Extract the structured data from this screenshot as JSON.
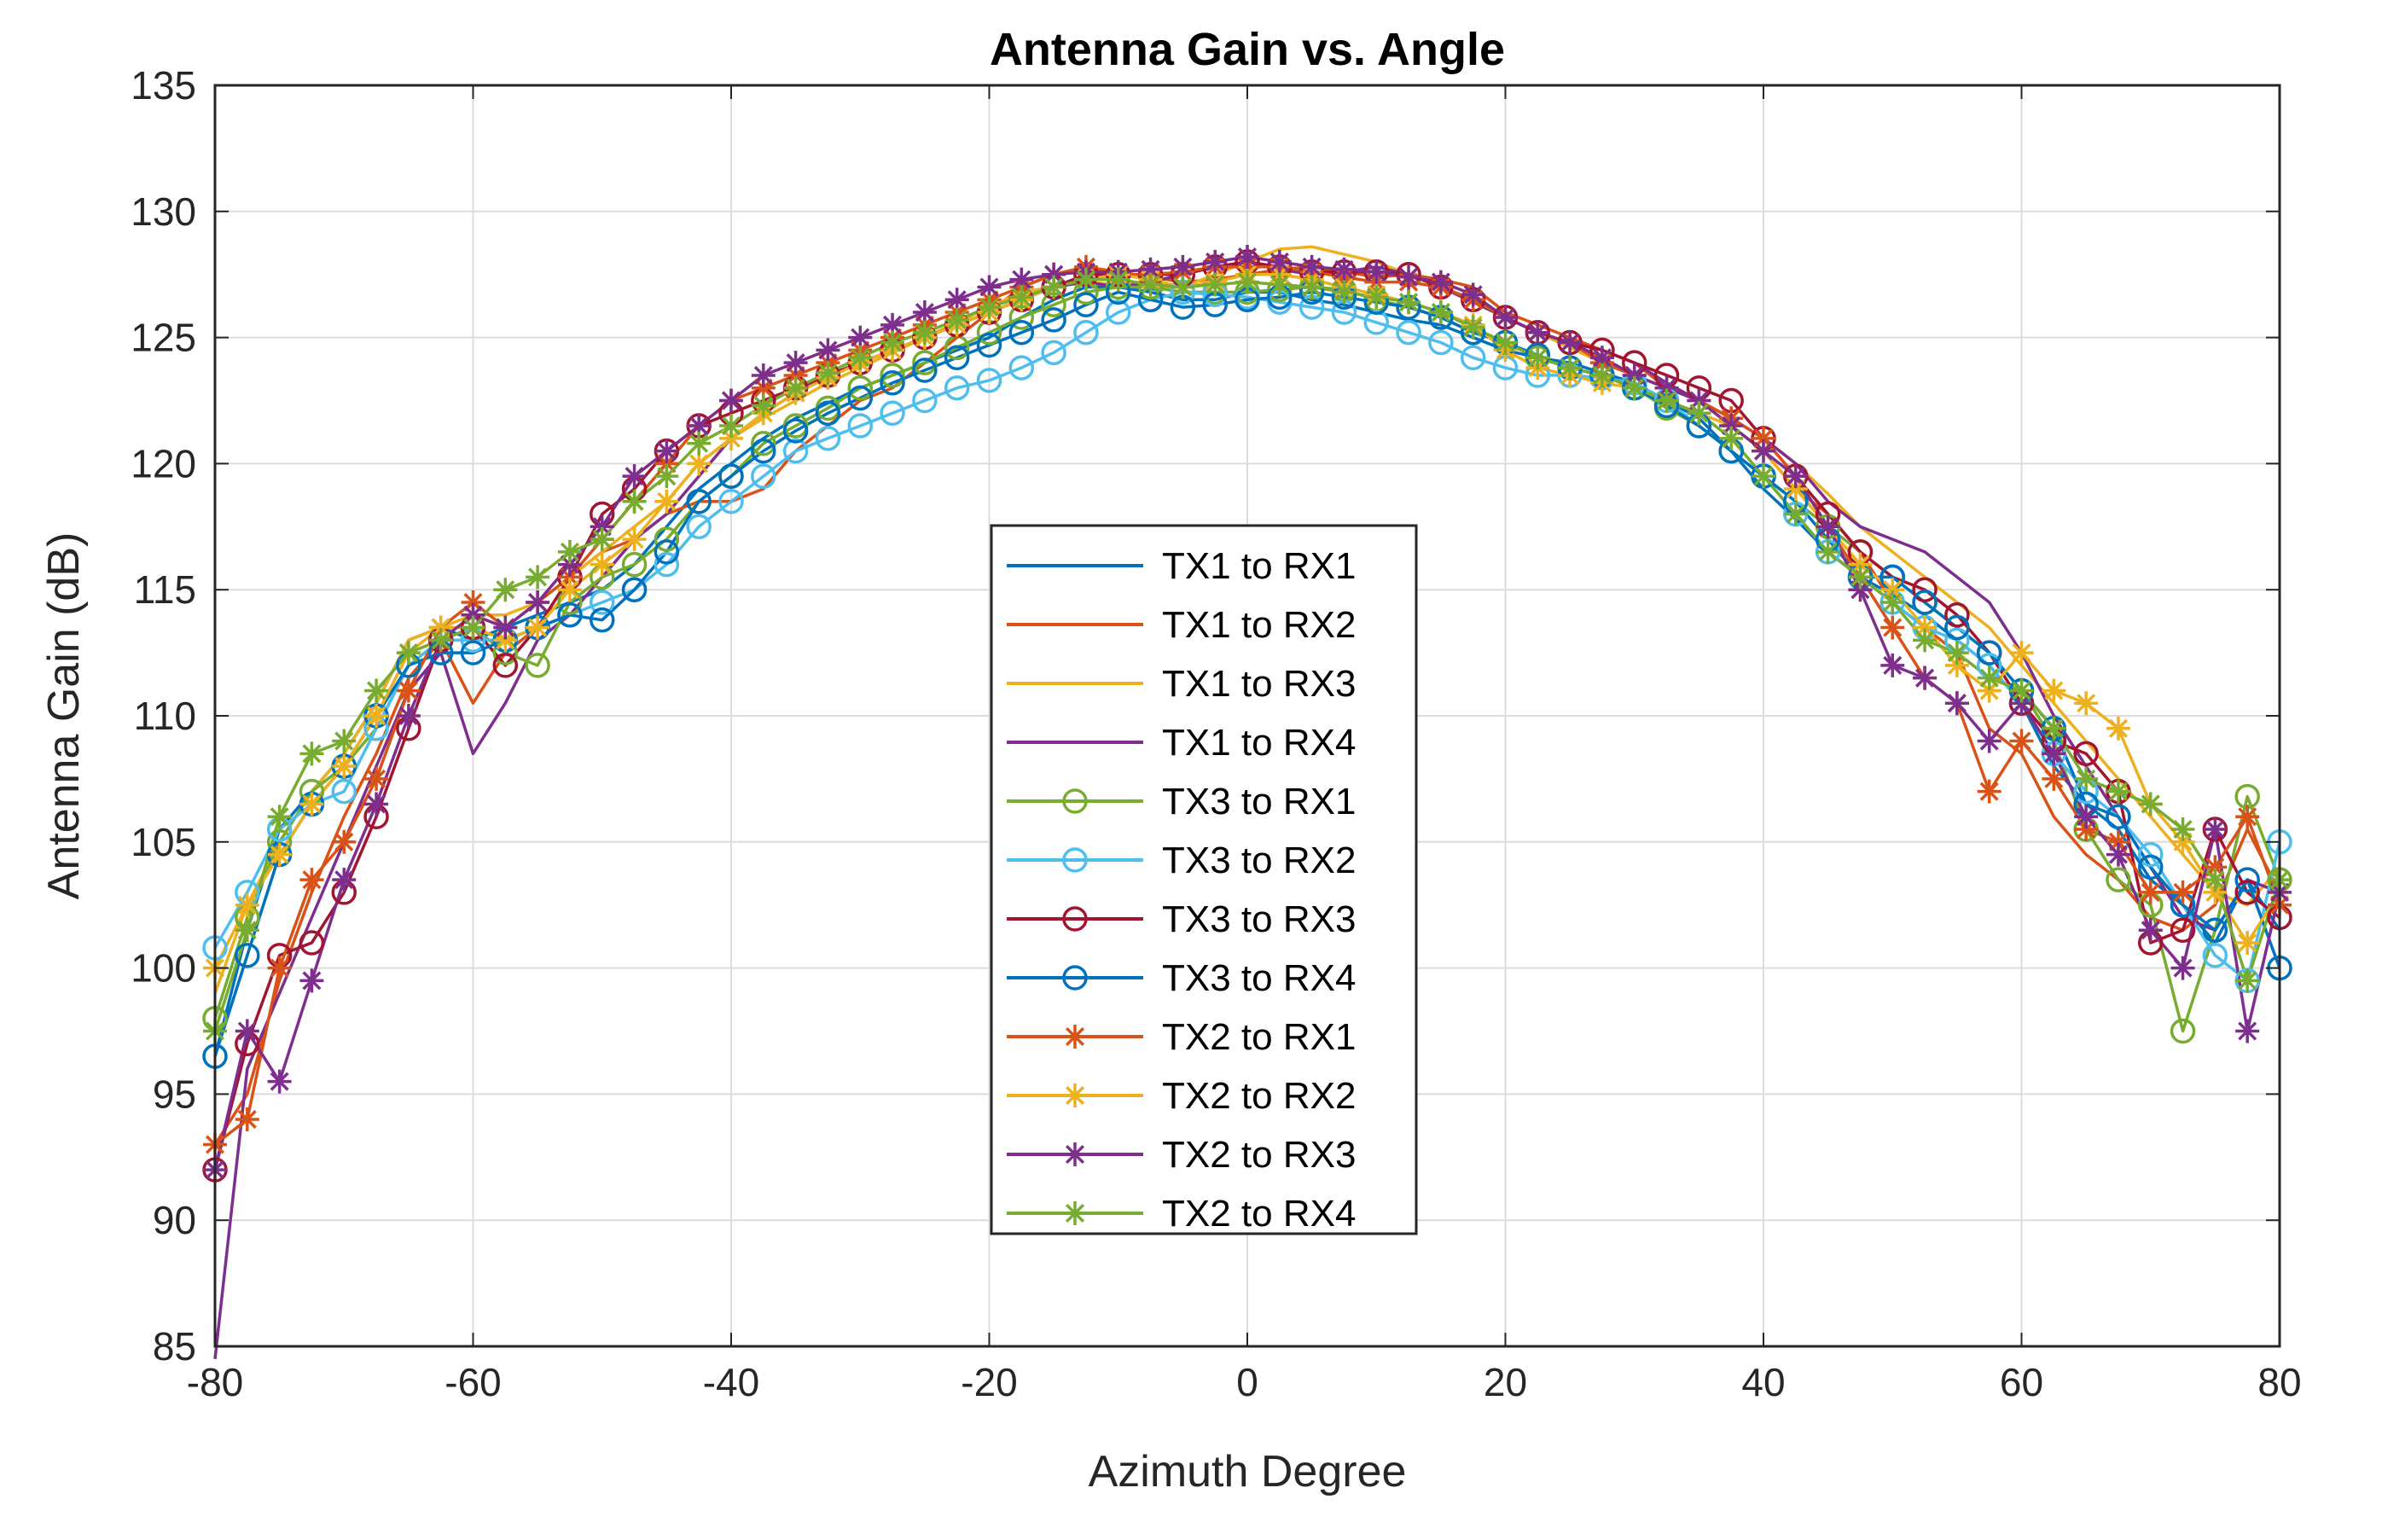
{
  "chart_data": {
    "type": "line",
    "title": "Antenna Gain vs. Angle",
    "xlabel": "Azimuth Degree",
    "ylabel": "Antenna Gain (dB)",
    "xlim": [
      -80,
      80
    ],
    "ylim": [
      85,
      135
    ],
    "xticks": [
      -80,
      -60,
      -40,
      -20,
      0,
      20,
      40,
      60,
      80
    ],
    "yticks": [
      85,
      90,
      95,
      100,
      105,
      110,
      115,
      120,
      125,
      130,
      135
    ],
    "grid": true,
    "legend_position": "center",
    "x": [
      -80,
      -77.5,
      -75,
      -72.5,
      -70,
      -67.5,
      -65,
      -62.5,
      -60,
      -57.5,
      -55,
      -52.5,
      -50,
      -47.5,
      -45,
      -42.5,
      -40,
      -37.5,
      -35,
      -32.5,
      -30,
      -27.5,
      -25,
      -22.5,
      -20,
      -17.5,
      -15,
      -12.5,
      -10,
      -7.5,
      -5,
      -2.5,
      0,
      2.5,
      5,
      7.5,
      10,
      12.5,
      15,
      17.5,
      20,
      22.5,
      25,
      27.5,
      30,
      32.5,
      35,
      37.5,
      40,
      42.5,
      45,
      47.5,
      50,
      52.5,
      55,
      57.5,
      60,
      62.5,
      65,
      67.5,
      70,
      72.5,
      75,
      77.5,
      80
    ],
    "series": [
      {
        "name": "TX1 to RX1",
        "color": "#0072BD",
        "marker": "none",
        "values": [
          96.5,
          101.5,
          105.5,
          107.0,
          108.5,
          110.5,
          113.0,
          113.5,
          113.0,
          113.5,
          114.0,
          114.5,
          115.0,
          116.0,
          117.5,
          119.0,
          120.0,
          121.0,
          121.8,
          122.4,
          123.0,
          123.5,
          124.0,
          124.5,
          125.0,
          125.8,
          126.5,
          127.0,
          127.0,
          126.8,
          126.5,
          126.5,
          126.8,
          126.8,
          126.5,
          126.3,
          126.0,
          125.7,
          125.5,
          125.0,
          124.5,
          124.2,
          124.0,
          123.6,
          123.2,
          122.5,
          121.8,
          120.5,
          119.0,
          117.8,
          116.5,
          115.5,
          114.8,
          114.0,
          113.0,
          112.0,
          110.5,
          108.0,
          106.5,
          105.5,
          103.5,
          102.5,
          101.0,
          103.5,
          101.5
        ]
      },
      {
        "name": "TX1 to RX2",
        "color": "#D95319",
        "marker": "none",
        "values": [
          93.0,
          95.0,
          99.5,
          103.0,
          106.0,
          108.5,
          111.5,
          113.0,
          110.5,
          112.5,
          113.5,
          115.5,
          116.5,
          117.0,
          118.0,
          118.5,
          118.5,
          119.0,
          120.5,
          121.5,
          122.5,
          123.0,
          124.0,
          125.0,
          126.0,
          127.0,
          127.5,
          127.8,
          127.6,
          127.4,
          127.2,
          127.3,
          127.5,
          127.7,
          127.8,
          127.6,
          127.4,
          127.5,
          127.3,
          127.0,
          126.0,
          125.5,
          125.0,
          124.5,
          124.0,
          123.0,
          122.5,
          121.5,
          120.5,
          119.0,
          118.0,
          116.5,
          114.5,
          113.5,
          112.5,
          109.5,
          108.5,
          106.0,
          104.5,
          103.5,
          102.0,
          101.5,
          102.5,
          105.5,
          103.0
        ]
      },
      {
        "name": "TX1 to RX3",
        "color": "#EDB120",
        "marker": "none",
        "values": [
          99.0,
          102.5,
          105.0,
          107.0,
          108.5,
          110.5,
          113.0,
          113.5,
          114.0,
          114.0,
          114.5,
          115.5,
          116.5,
          117.5,
          118.5,
          120.0,
          121.0,
          121.8,
          122.5,
          123.2,
          123.8,
          124.4,
          125.0,
          125.6,
          126.2,
          126.8,
          127.0,
          127.2,
          127.1,
          127.0,
          127.0,
          127.5,
          128.0,
          128.5,
          128.6,
          128.3,
          128.0,
          127.5,
          127.0,
          126.5,
          125.8,
          125.2,
          124.6,
          124.0,
          123.5,
          123.0,
          122.5,
          121.8,
          121.0,
          120.0,
          118.8,
          117.5,
          116.5,
          115.5,
          114.5,
          113.5,
          112.0,
          110.5,
          109.0,
          107.5,
          106.0,
          104.5,
          103.0,
          102.5,
          104.0
        ]
      },
      {
        "name": "TX1 to RX4",
        "color": "#7E2F8E",
        "marker": "none",
        "values": [
          84.5,
          96.0,
          99.0,
          102.0,
          105.0,
          108.0,
          111.0,
          112.5,
          108.5,
          110.5,
          113.0,
          114.0,
          115.5,
          117.0,
          118.0,
          119.5,
          121.0,
          122.0,
          122.8,
          123.5,
          124.0,
          124.5,
          125.0,
          125.5,
          126.0,
          126.5,
          127.0,
          127.2,
          127.0,
          127.2,
          127.5,
          127.8,
          128.0,
          127.7,
          127.5,
          127.6,
          127.8,
          127.5,
          127.0,
          126.4,
          125.8,
          125.2,
          124.8,
          124.5,
          124.0,
          123.2,
          122.5,
          121.8,
          121.0,
          120.0,
          118.5,
          117.5,
          117.0,
          116.5,
          115.5,
          114.5,
          112.5,
          110.0,
          108.0,
          106.0,
          104.0,
          102.0,
          101.5,
          103.5,
          103.0
        ]
      },
      {
        "name": "TX3 to RX1",
        "color": "#77AC30",
        "marker": "circle",
        "values": [
          98.0,
          102.0,
          105.0,
          107.0,
          108.0,
          109.5,
          112.0,
          113.0,
          113.5,
          112.5,
          112.0,
          114.5,
          115.5,
          116.0,
          117.0,
          118.5,
          119.5,
          120.8,
          121.5,
          122.2,
          123.0,
          123.5,
          124.0,
          124.6,
          125.2,
          125.8,
          126.3,
          126.8,
          127.0,
          127.0,
          126.8,
          126.8,
          126.8,
          126.9,
          127.0,
          126.9,
          126.5,
          126.2,
          125.8,
          125.2,
          124.8,
          124.2,
          123.8,
          123.5,
          123.0,
          122.2,
          121.5,
          120.5,
          119.5,
          118.5,
          117.5,
          116.5,
          115.5,
          114.5,
          113.5,
          112.5,
          111.0,
          109.0,
          105.5,
          103.5,
          102.5,
          97.5,
          101.5,
          106.8,
          103.5
        ]
      },
      {
        "name": "TX3 to RX2",
        "color": "#4DBEEE",
        "marker": "circle",
        "values": [
          100.8,
          103.0,
          105.5,
          106.5,
          107.0,
          109.5,
          112.0,
          113.0,
          113.0,
          113.0,
          113.5,
          114.0,
          114.5,
          115.0,
          116.0,
          117.5,
          118.5,
          119.5,
          120.5,
          121.0,
          121.5,
          122.0,
          122.5,
          123.0,
          123.3,
          123.8,
          124.4,
          125.2,
          126.0,
          126.5,
          126.8,
          126.7,
          126.6,
          126.4,
          126.2,
          126.0,
          125.6,
          125.2,
          124.8,
          124.2,
          123.8,
          123.5,
          123.5,
          123.4,
          123.2,
          122.5,
          121.5,
          120.5,
          119.5,
          118.0,
          116.5,
          115.5,
          114.5,
          113.5,
          113.0,
          112.0,
          110.5,
          108.5,
          107.0,
          106.0,
          104.5,
          102.5,
          100.5,
          99.5,
          105.0
        ]
      },
      {
        "name": "TX3 to RX3",
        "color": "#A2142F",
        "marker": "circle",
        "values": [
          92.0,
          97.0,
          100.5,
          101.0,
          103.0,
          106.0,
          109.5,
          113.0,
          113.5,
          112.0,
          113.5,
          115.5,
          118.0,
          119.0,
          120.5,
          121.5,
          122.0,
          122.5,
          123.0,
          123.5,
          124.0,
          124.5,
          125.0,
          125.5,
          126.0,
          126.5,
          127.0,
          127.5,
          127.5,
          127.5,
          127.5,
          127.8,
          128.0,
          127.8,
          127.6,
          127.6,
          127.6,
          127.5,
          127.0,
          126.5,
          125.8,
          125.2,
          124.8,
          124.5,
          124.0,
          123.5,
          123.0,
          122.5,
          121.0,
          119.5,
          118.0,
          116.5,
          115.5,
          115.0,
          114.0,
          112.5,
          110.5,
          109.0,
          108.5,
          107.0,
          101.0,
          101.5,
          105.5,
          103.0,
          102.0
        ]
      },
      {
        "name": "TX3 to RX4",
        "color": "#0072BD",
        "marker": "circle",
        "values": [
          96.5,
          100.5,
          104.5,
          106.5,
          108.0,
          110.0,
          112.0,
          112.5,
          112.5,
          113.0,
          113.5,
          114.0,
          113.8,
          115.0,
          116.5,
          118.5,
          119.5,
          120.5,
          121.3,
          122.0,
          122.6,
          123.2,
          123.7,
          124.2,
          124.7,
          125.2,
          125.7,
          126.3,
          126.8,
          126.5,
          126.2,
          126.3,
          126.5,
          126.6,
          126.8,
          126.6,
          126.4,
          126.2,
          125.8,
          125.2,
          124.8,
          124.3,
          123.8,
          123.5,
          123.0,
          122.3,
          121.5,
          120.5,
          119.5,
          118.5,
          117.0,
          115.5,
          115.5,
          114.5,
          113.5,
          112.5,
          111.0,
          109.5,
          106.5,
          106.0,
          104.0,
          102.5,
          101.5,
          103.5,
          100.0
        ]
      },
      {
        "name": "TX2 to RX1",
        "color": "#D95319",
        "marker": "star",
        "values": [
          93.0,
          94.0,
          100.0,
          103.5,
          105.0,
          107.5,
          111.0,
          113.5,
          114.5,
          113.5,
          114.5,
          115.5,
          117.0,
          118.5,
          120.0,
          121.5,
          122.5,
          123.0,
          123.5,
          124.0,
          124.5,
          125.0,
          125.5,
          126.0,
          126.5,
          127.0,
          127.5,
          127.8,
          127.5,
          127.5,
          127.6,
          127.8,
          127.8,
          127.8,
          127.6,
          127.4,
          127.2,
          127.2,
          127.0,
          126.5,
          125.8,
          125.2,
          124.8,
          124.0,
          123.5,
          123.0,
          122.5,
          121.8,
          121.0,
          119.5,
          117.5,
          115.5,
          113.5,
          111.5,
          110.5,
          107.0,
          109.0,
          107.5,
          105.5,
          105.0,
          103.0,
          103.0,
          104.0,
          106.0,
          102.5
        ]
      },
      {
        "name": "TX2 to RX2",
        "color": "#EDB120",
        "marker": "star",
        "values": [
          100.0,
          102.5,
          104.5,
          106.5,
          108.0,
          110.0,
          112.5,
          113.5,
          113.5,
          113.0,
          113.5,
          115.0,
          116.0,
          117.0,
          118.5,
          120.0,
          121.0,
          122.0,
          122.8,
          123.4,
          124.0,
          124.5,
          125.0,
          125.5,
          126.0,
          126.5,
          127.0,
          127.3,
          127.5,
          127.3,
          127.0,
          127.2,
          127.5,
          127.5,
          127.3,
          127.0,
          126.7,
          126.4,
          126.0,
          125.5,
          124.5,
          123.8,
          123.5,
          123.2,
          123.0,
          122.5,
          122.0,
          121.5,
          120.5,
          119.0,
          117.5,
          116.0,
          115.0,
          113.5,
          112.0,
          111.0,
          112.5,
          111.0,
          110.5,
          109.5,
          106.5,
          105.0,
          103.0,
          101.0,
          103.0
        ]
      },
      {
        "name": "TX2 to RX3",
        "color": "#7E2F8E",
        "marker": "star",
        "values": [
          92.0,
          97.5,
          95.5,
          99.5,
          103.5,
          106.5,
          110.0,
          113.0,
          114.0,
          113.5,
          114.5,
          116.0,
          117.5,
          119.5,
          120.5,
          121.5,
          122.5,
          123.5,
          124.0,
          124.5,
          125.0,
          125.5,
          126.0,
          126.5,
          127.0,
          127.3,
          127.5,
          127.6,
          127.6,
          127.7,
          127.8,
          128.0,
          128.2,
          128.0,
          127.8,
          127.7,
          127.6,
          127.4,
          127.2,
          126.7,
          125.8,
          125.2,
          124.8,
          124.2,
          123.5,
          123.0,
          122.5,
          121.5,
          120.5,
          119.5,
          117.5,
          115.0,
          112.0,
          111.5,
          110.5,
          109.0,
          110.5,
          108.5,
          106.0,
          104.5,
          101.5,
          100.0,
          105.5,
          97.5,
          103.0
        ]
      },
      {
        "name": "TX2 to RX4",
        "color": "#77AC30",
        "marker": "star",
        "values": [
          97.5,
          101.5,
          106.0,
          108.5,
          109.0,
          111.0,
          112.5,
          113.0,
          113.5,
          115.0,
          115.5,
          116.5,
          117.0,
          118.5,
          119.5,
          120.8,
          121.5,
          122.3,
          123.0,
          123.6,
          124.2,
          124.8,
          125.2,
          125.7,
          126.2,
          126.6,
          127.0,
          127.3,
          127.3,
          127.1,
          127.0,
          127.1,
          127.2,
          127.1,
          127.0,
          126.8,
          126.6,
          126.4,
          126.0,
          125.4,
          124.8,
          124.2,
          123.8,
          123.5,
          123.0,
          122.5,
          122.0,
          121.0,
          119.5,
          118.0,
          116.5,
          115.5,
          114.5,
          113.0,
          112.5,
          111.5,
          111.0,
          109.5,
          107.5,
          107.0,
          106.5,
          105.5,
          103.5,
          99.5,
          103.5
        ]
      }
    ]
  }
}
